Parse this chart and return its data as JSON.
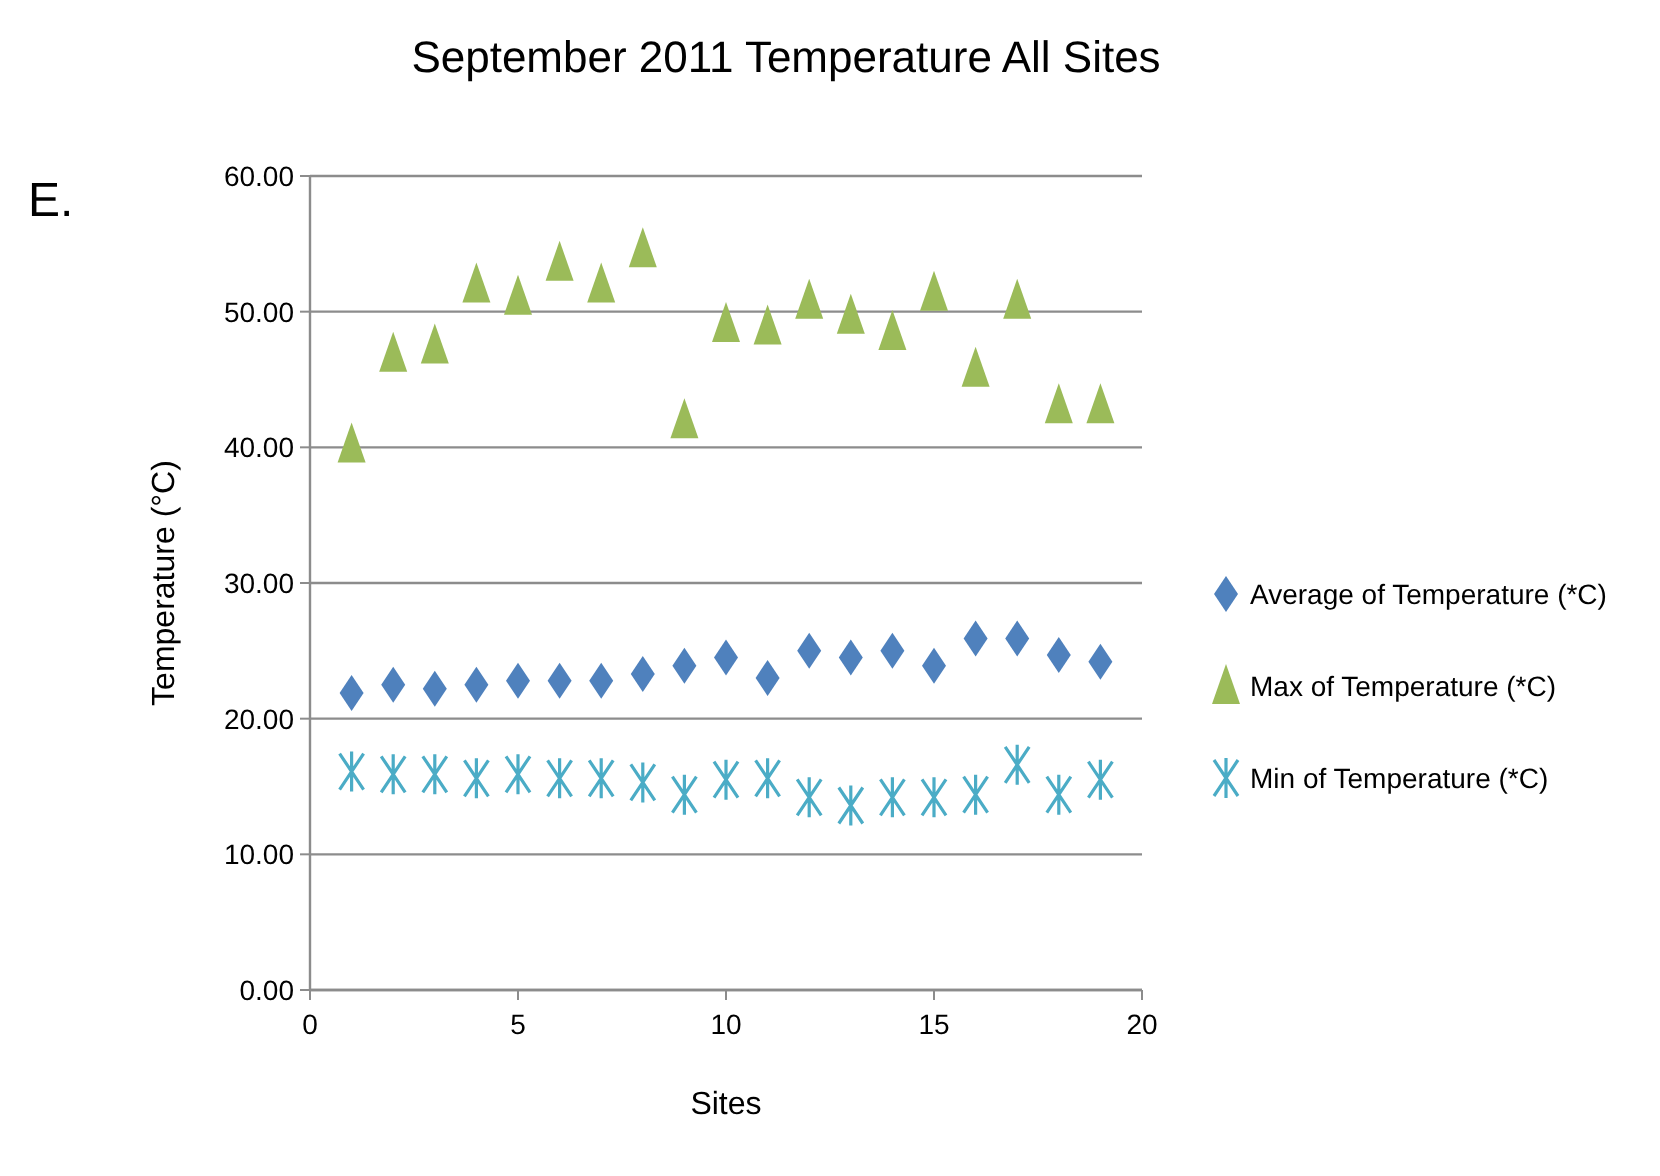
{
  "chart_data": {
    "type": "scatter",
    "title": "September 2011 Temperature All Sites",
    "xlabel": "Sites",
    "ylabel": "Temperature  (°C)",
    "annotations": [
      "E."
    ],
    "x": [
      1,
      2,
      3,
      4,
      5,
      6,
      7,
      8,
      9,
      10,
      11,
      12,
      13,
      14,
      15,
      16,
      17,
      18,
      19
    ],
    "series": [
      {
        "name": "Average of Temperature (*C)",
        "color": "#4f81bd",
        "marker": "diamond",
        "values": [
          21.9,
          22.5,
          22.2,
          22.5,
          22.8,
          22.8,
          22.8,
          23.3,
          23.9,
          24.5,
          23.0,
          25.0,
          24.5,
          25.0,
          23.9,
          25.9,
          25.9,
          24.7,
          24.2
        ]
      },
      {
        "name": "Max of Temperature (*C)",
        "color": "#9bbb59",
        "marker": "triangle",
        "values": [
          40.2,
          46.9,
          47.5,
          52.0,
          51.1,
          53.6,
          52.0,
          54.6,
          42.0,
          49.1,
          48.9,
          50.8,
          49.7,
          48.5,
          51.4,
          45.8,
          50.8,
          43.1,
          43.1
        ]
      },
      {
        "name": "Min of Temperature (*C)",
        "color": "#4bacc6",
        "marker": "cross",
        "values": [
          16.1,
          15.9,
          15.9,
          15.6,
          15.9,
          15.6,
          15.6,
          15.3,
          14.4,
          15.5,
          15.6,
          14.2,
          13.6,
          14.2,
          14.2,
          14.4,
          16.6,
          14.4,
          15.5
        ]
      }
    ],
    "xlim": [
      0,
      20
    ],
    "xticks": [
      0,
      5,
      10,
      15,
      20
    ],
    "ylim": [
      0,
      60
    ],
    "yticks": [
      {
        "value": 0,
        "label": "0.00"
      },
      {
        "value": 10,
        "label": "10.00"
      },
      {
        "value": 20,
        "label": "20.00"
      },
      {
        "value": 30,
        "label": "30.00"
      },
      {
        "value": 40,
        "label": "40.00"
      },
      {
        "value": 50,
        "label": "50.00"
      },
      {
        "value": 60,
        "label": "60.00"
      }
    ],
    "grid": "y",
    "legend": "right"
  }
}
